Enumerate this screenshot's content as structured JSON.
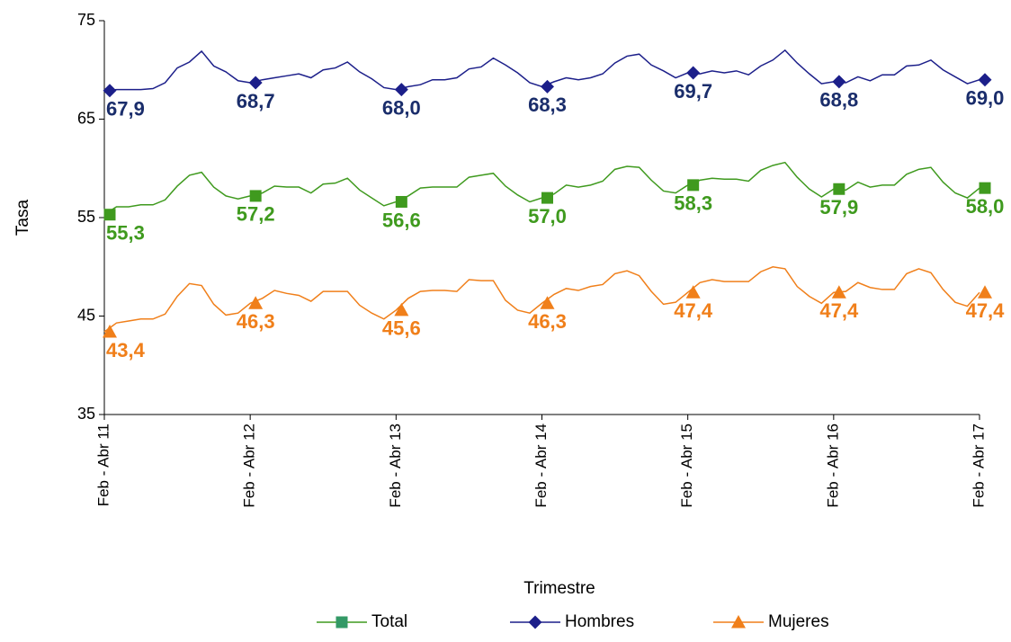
{
  "chart_data": {
    "type": "line",
    "x_label": "Trimestre",
    "y_label": "Tasa",
    "categories": [
      "Feb - Abr 11",
      null,
      null,
      null,
      null,
      null,
      null,
      null,
      null,
      null,
      null,
      null,
      "Feb - Abr 12",
      null,
      null,
      null,
      null,
      null,
      null,
      null,
      null,
      null,
      null,
      null,
      "Feb - Abr 13",
      null,
      null,
      null,
      null,
      null,
      null,
      null,
      null,
      null,
      null,
      null,
      "Feb - Abr 14",
      null,
      null,
      null,
      null,
      null,
      null,
      null,
      null,
      null,
      null,
      null,
      "Feb - Abr 15",
      null,
      null,
      null,
      null,
      null,
      null,
      null,
      null,
      null,
      null,
      null,
      "Feb - Abr 16",
      null,
      null,
      null,
      null,
      null,
      null,
      null,
      null,
      null,
      null,
      null,
      "Feb - Abr 17"
    ],
    "ylim": [
      35,
      75
    ],
    "yticks": [
      35,
      45,
      55,
      65,
      75
    ],
    "grid": false,
    "legend": "bottom",
    "series": [
      {
        "name": "Total",
        "color": "#3f9a1e",
        "legend_color": "#339966",
        "marker": "square",
        "values": [
          55.3,
          56.1,
          56.1,
          56.3,
          56.3,
          56.8,
          58.2,
          59.3,
          59.6,
          58.1,
          57.2,
          56.9,
          57.2,
          57.5,
          58.2,
          58.1,
          58.1,
          57.5,
          58.4,
          58.5,
          59.0,
          57.8,
          57.0,
          56.2,
          56.6,
          57.2,
          58.0,
          58.1,
          58.1,
          58.1,
          59.1,
          59.3,
          59.5,
          58.2,
          57.3,
          56.6,
          57.0,
          57.4,
          58.3,
          58.1,
          58.3,
          58.7,
          59.9,
          60.2,
          60.1,
          58.8,
          57.7,
          57.5,
          58.3,
          58.8,
          59.0,
          58.9,
          58.9,
          58.7,
          59.8,
          60.3,
          60.6,
          59.1,
          57.9,
          57.1,
          57.9,
          57.8,
          58.6,
          58.1,
          58.3,
          58.3,
          59.4,
          59.9,
          60.1,
          58.6,
          57.5,
          57.0,
          58.0
        ],
        "value_labels": [
          "55,3",
          null,
          null,
          null,
          null,
          null,
          null,
          null,
          null,
          null,
          null,
          null,
          "57,2",
          null,
          null,
          null,
          null,
          null,
          null,
          null,
          null,
          null,
          null,
          null,
          "56,6",
          null,
          null,
          null,
          null,
          null,
          null,
          null,
          null,
          null,
          null,
          null,
          "57,0",
          null,
          null,
          null,
          null,
          null,
          null,
          null,
          null,
          null,
          null,
          null,
          "58,3",
          null,
          null,
          null,
          null,
          null,
          null,
          null,
          null,
          null,
          null,
          null,
          "57,9",
          null,
          null,
          null,
          null,
          null,
          null,
          null,
          null,
          null,
          null,
          null,
          "58,0"
        ]
      },
      {
        "name": "Hombres",
        "color": "#1c1f8a",
        "label_color": "#1a2d6b",
        "marker": "diamond",
        "values": [
          67.9,
          68.0,
          68.0,
          68.0,
          68.1,
          68.7,
          70.2,
          70.8,
          71.9,
          70.4,
          69.8,
          68.9,
          68.7,
          69.0,
          69.2,
          69.4,
          69.6,
          69.2,
          70.0,
          70.2,
          70.8,
          69.8,
          69.1,
          68.2,
          68.0,
          68.3,
          68.5,
          69.0,
          69.0,
          69.2,
          70.1,
          70.3,
          71.2,
          70.5,
          69.7,
          68.7,
          68.3,
          68.8,
          69.2,
          69.0,
          69.2,
          69.6,
          70.7,
          71.4,
          71.6,
          70.5,
          69.9,
          69.2,
          69.7,
          69.6,
          69.9,
          69.7,
          69.9,
          69.5,
          70.4,
          71.0,
          72.0,
          70.7,
          69.6,
          68.6,
          68.8,
          68.7,
          69.3,
          68.9,
          69.5,
          69.5,
          70.4,
          70.5,
          71.0,
          70.0,
          69.3,
          68.6,
          69.0
        ],
        "value_labels": [
          "67,9",
          null,
          null,
          null,
          null,
          null,
          null,
          null,
          null,
          null,
          null,
          null,
          "68,7",
          null,
          null,
          null,
          null,
          null,
          null,
          null,
          null,
          null,
          null,
          null,
          "68,0",
          null,
          null,
          null,
          null,
          null,
          null,
          null,
          null,
          null,
          null,
          null,
          "68,3",
          null,
          null,
          null,
          null,
          null,
          null,
          null,
          null,
          null,
          null,
          null,
          "69,7",
          null,
          null,
          null,
          null,
          null,
          null,
          null,
          null,
          null,
          null,
          null,
          "68,8",
          null,
          null,
          null,
          null,
          null,
          null,
          null,
          null,
          null,
          null,
          null,
          "69,0"
        ]
      },
      {
        "name": "Mujeres",
        "color": "#f07f1a",
        "marker": "triangle",
        "values": [
          43.4,
          44.3,
          44.5,
          44.7,
          44.7,
          45.2,
          47.0,
          48.3,
          48.1,
          46.2,
          45.1,
          45.3,
          46.3,
          46.8,
          47.6,
          47.3,
          47.1,
          46.5,
          47.5,
          47.5,
          47.5,
          46.1,
          45.3,
          44.7,
          45.6,
          46.8,
          47.5,
          47.6,
          47.6,
          47.5,
          48.7,
          48.6,
          48.6,
          46.6,
          45.6,
          45.3,
          46.3,
          47.2,
          47.8,
          47.6,
          48.0,
          48.2,
          49.3,
          49.6,
          49.1,
          47.5,
          46.2,
          46.4,
          47.4,
          48.4,
          48.7,
          48.5,
          48.5,
          48.5,
          49.5,
          50.0,
          49.8,
          48.0,
          47.0,
          46.3,
          47.4,
          47.5,
          48.4,
          47.9,
          47.7,
          47.7,
          49.3,
          49.8,
          49.4,
          47.7,
          46.4,
          46.0,
          47.4
        ],
        "value_labels": [
          "43,4",
          null,
          null,
          null,
          null,
          null,
          null,
          null,
          null,
          null,
          null,
          null,
          "46,3",
          null,
          null,
          null,
          null,
          null,
          null,
          null,
          null,
          null,
          null,
          null,
          "45,6",
          null,
          null,
          null,
          null,
          null,
          null,
          null,
          null,
          null,
          null,
          null,
          "46,3",
          null,
          null,
          null,
          null,
          null,
          null,
          null,
          null,
          null,
          null,
          null,
          "47,4",
          null,
          null,
          null,
          null,
          null,
          null,
          null,
          null,
          null,
          null,
          null,
          "47,4",
          null,
          null,
          null,
          null,
          null,
          null,
          null,
          null,
          null,
          null,
          null,
          "47,4"
        ]
      }
    ]
  }
}
